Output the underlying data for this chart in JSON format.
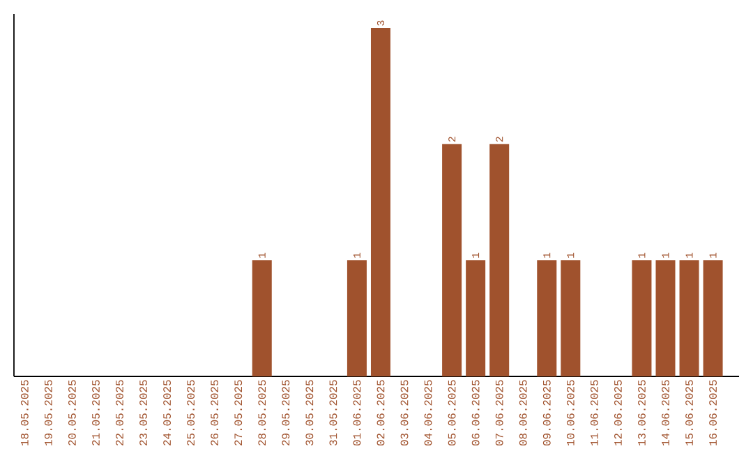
{
  "chart_data": {
    "type": "bar",
    "categories": [
      "18.05.2025",
      "19.05.2025",
      "20.05.2025",
      "21.05.2025",
      "22.05.2025",
      "23.05.2025",
      "24.05.2025",
      "25.05.2025",
      "26.05.2025",
      "27.05.2025",
      "28.05.2025",
      "29.05.2025",
      "30.05.2025",
      "31.05.2025",
      "01.06.2025",
      "02.06.2025",
      "03.06.2025",
      "04.06.2025",
      "05.06.2025",
      "06.06.2025",
      "07.06.2025",
      "08.06.2025",
      "09.06.2025",
      "10.06.2025",
      "11.06.2025",
      "12.06.2025",
      "13.06.2025",
      "14.06.2025",
      "15.06.2025",
      "16.06.2025"
    ],
    "values": [
      0,
      0,
      0,
      0,
      0,
      0,
      0,
      0,
      0,
      0,
      1,
      0,
      0,
      0,
      1,
      3,
      0,
      0,
      2,
      1,
      2,
      0,
      1,
      1,
      0,
      0,
      1,
      1,
      1,
      1
    ],
    "value_labels": [
      null,
      null,
      null,
      null,
      null,
      null,
      null,
      null,
      null,
      null,
      "1",
      null,
      null,
      null,
      "1",
      "3",
      null,
      null,
      "2",
      "1",
      "2",
      null,
      "1",
      "1",
      null,
      null,
      "1",
      "1",
      "1",
      "1"
    ],
    "color": "#a0522d"
  }
}
